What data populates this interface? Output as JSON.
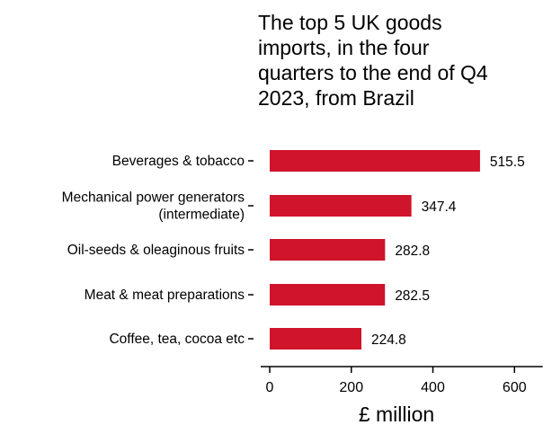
{
  "chart_data": {
    "type": "bar",
    "orientation": "horizontal",
    "title": "The top 5 UK goods imports, in the four quarters to the end of Q4 2023, from Brazil",
    "title_lines": [
      "The top 5 UK goods",
      "imports, in the four",
      "quarters to the end of Q4",
      "2023, from Brazil"
    ],
    "categories": [
      "Beverages & tobacco",
      "Mechanical power generators (intermediate)",
      "Oil-seeds & oleaginous fruits",
      "Meat & meat preparations",
      "Coffee, tea, cocoa etc"
    ],
    "category_lines": [
      [
        "Beverages & tobacco"
      ],
      [
        "Mechanical power generators",
        "(intermediate)"
      ],
      [
        "Oil-seeds & oleaginous fruits"
      ],
      [
        "Meat & meat preparations"
      ],
      [
        "Coffee, tea, cocoa etc"
      ]
    ],
    "values": [
      515.5,
      347.4,
      282.8,
      282.5,
      224.8
    ],
    "value_labels": [
      "515.5",
      "347.4",
      "282.8",
      "282.5",
      "224.8"
    ],
    "xlabel": "£ million",
    "ylabel": "",
    "xlim": [
      0,
      700
    ],
    "xticks": [
      0,
      200,
      400,
      600
    ],
    "xtick_labels": [
      "0",
      "200",
      "400",
      "600"
    ],
    "grid": false,
    "legend": "none",
    "bar_color": "#cf142b"
  }
}
